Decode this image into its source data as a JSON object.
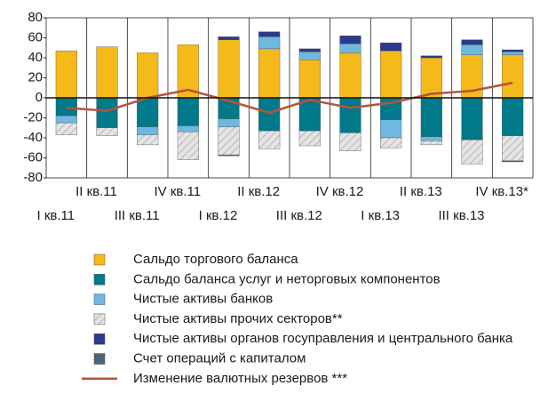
{
  "chart_data": {
    "type": "bar",
    "stacked": true,
    "categories": [
      "I кв.11",
      "II кв.11",
      "III кв.11",
      "IV кв.11",
      "I кв.12",
      "II кв.12",
      "III кв.12",
      "IV кв.12",
      "I кв.13",
      "II кв.13",
      "III кв.13",
      "IV кв.13*"
    ],
    "ylim": [
      -80,
      80
    ],
    "yticks": [
      -80,
      -60,
      -40,
      -20,
      0,
      20,
      40,
      60,
      80
    ],
    "series": [
      {
        "name": "Сальдо торгового баланса",
        "color": "#f5b919",
        "values": [
          47,
          51,
          45,
          53,
          58,
          49,
          38,
          45,
          47,
          40,
          43,
          43
        ]
      },
      {
        "name": "Сальдо баланса услуг и неторговых компонентов",
        "color": "#00798a",
        "values": [
          -18,
          -30,
          -29,
          -28,
          -21,
          -33,
          -33,
          -35,
          -22,
          -39,
          -42,
          -38
        ]
      },
      {
        "name": "Чистые активы банков",
        "color": "#6fb8e0",
        "values": [
          -7,
          0,
          -8,
          -6,
          -8,
          12,
          8,
          9,
          -18,
          -4,
          10,
          3
        ]
      },
      {
        "name": "Чистые активы прочих секторов**",
        "color": "#dcdcdc",
        "pattern": "hatch",
        "values": [
          -12,
          -8,
          -10,
          -28,
          -28,
          -18,
          -15,
          -18,
          -10,
          -4,
          -24,
          -25
        ]
      },
      {
        "name": "Чистые активы органов госуправления и центрального банка",
        "color": "#2b3a8c",
        "values": [
          0,
          0,
          0,
          0,
          3,
          5,
          3,
          8,
          8,
          2,
          5,
          2
        ]
      },
      {
        "name": "Счет операций с капиталом",
        "color": "#4a6478",
        "values": [
          0,
          0,
          0,
          0,
          -1,
          0,
          0,
          0,
          0,
          0,
          0,
          -1
        ]
      },
      {
        "name": "Изменение валютных резервов ***",
        "color": "#b5533c",
        "type": "line",
        "values": [
          -10,
          -13,
          0,
          8,
          -3,
          -15,
          -2,
          -10,
          -5,
          4,
          7,
          15
        ]
      }
    ]
  }
}
